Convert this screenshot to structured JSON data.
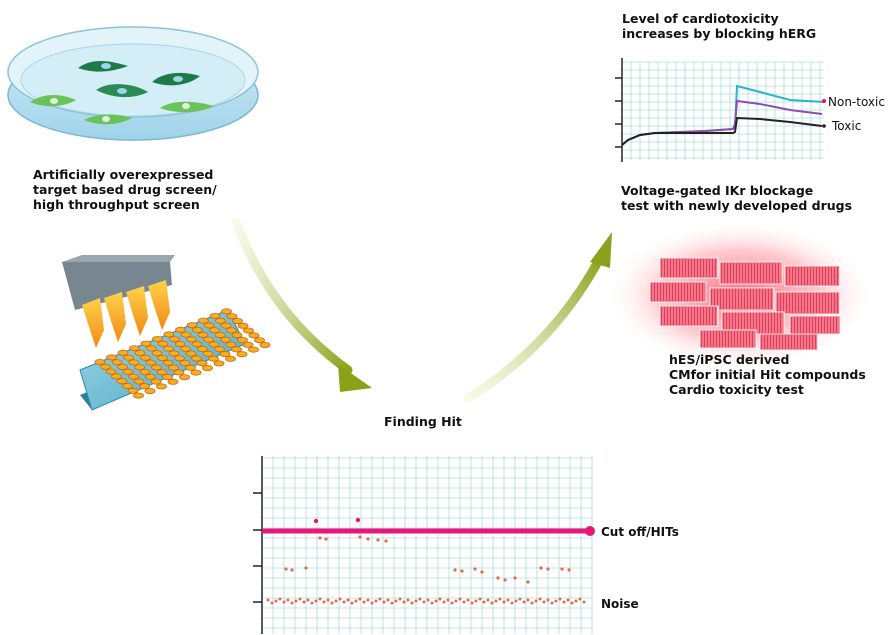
{
  "top_right_title": [
    "Level of cardiotoxicity",
    "increases by blocking hERG"
  ],
  "left_caption": [
    "Artificially overexpressed",
    "target based drug screen/",
    "high throughput screen"
  ],
  "right_caption": [
    "Voltage-gated IKr blockage",
    "test with newly developed drugs"
  ],
  "cell_caption": [
    "hES/iPSC derived",
    "CMfor initial Hit compounds",
    "Cardio toxicity test"
  ],
  "center_caption": "Finding Hit",
  "line_chart": {
    "legend_nontoxic": "Non-toxic",
    "legend_toxic": "Toxic",
    "colors": {
      "nontoxic": "#2bb3c8",
      "middle": "#8a4fb0",
      "toxic": "#222222",
      "nontoxic_marker": "#e0156e"
    }
  },
  "scatter_chart": {
    "cutoff_label": "Cut off/HITs",
    "noise_label": "Noise",
    "colors": {
      "cutoff": "#e8157a",
      "points": "#e46a4c",
      "hits": "#e8157a"
    }
  },
  "colors": {
    "arrow": "#8aa11a",
    "grid": "#8ed6c9",
    "cells": "#1f7a4a",
    "cells_light": "#6cc25a"
  }
}
